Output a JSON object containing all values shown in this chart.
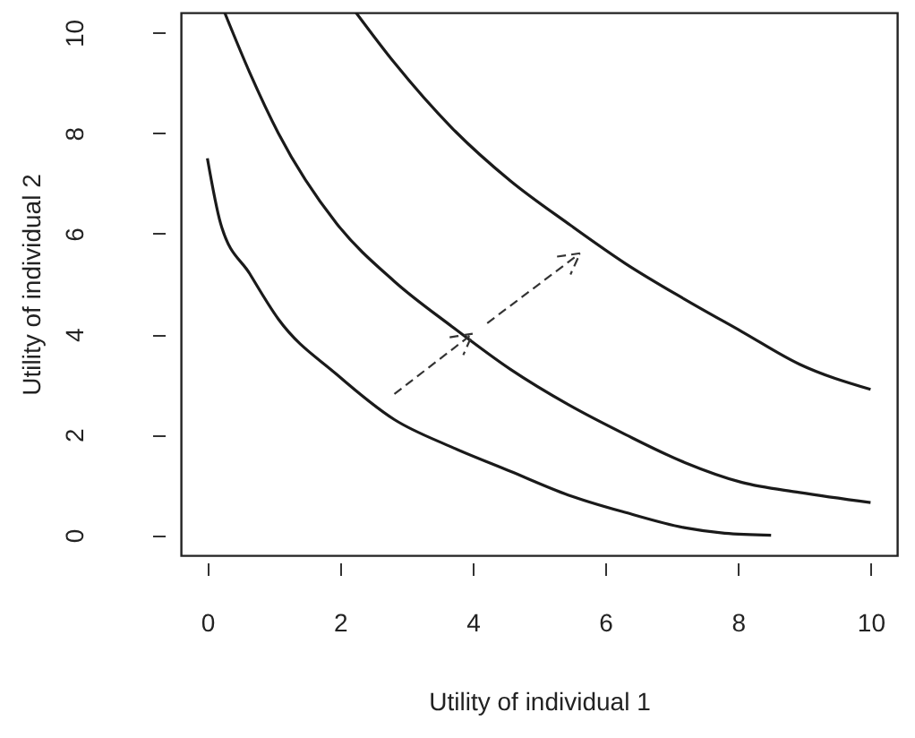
{
  "chart_data": {
    "type": "line",
    "xlabel": "Utility of individual 1",
    "ylabel": "Utility of individual 2",
    "xlim": [
      -0.4,
      10.4
    ],
    "ylim": [
      -0.4,
      10.4
    ],
    "xticks": [
      0,
      2,
      4,
      6,
      8,
      10
    ],
    "yticks": [
      0,
      2,
      4,
      6,
      8,
      10
    ],
    "marker": "none",
    "line_style": "solid",
    "series": [
      {
        "color": "#1a1a1a",
        "x": [
          0,
          0.2,
          0.64,
          1.07,
          1.95,
          2.82,
          3.69,
          4.57,
          5.44,
          6.31,
          7.19,
          7.8,
          8.5
        ],
        "values": [
          7.5,
          6.2,
          5.2,
          4.3,
          3.2,
          2.3,
          1.75,
          1.27,
          0.8,
          0.45,
          0.15,
          0.04,
          0
        ]
      },
      {
        "color": "#1a1a1a",
        "x": [
          0.26,
          0.64,
          1.07,
          1.95,
          2.82,
          3.69,
          4.57,
          5.44,
          6.31,
          7.19,
          8.06,
          8.93,
          10
        ],
        "values": [
          10.4,
          9.2,
          8,
          6.2,
          5.05,
          4.15,
          3.3,
          2.6,
          2,
          1.45,
          1.05,
          0.85,
          0.65
        ]
      },
      {
        "color": "#1a1a1a",
        "x": [
          2.24,
          2.82,
          3.69,
          4.57,
          5.44,
          6.31,
          7.19,
          8.06,
          8.93,
          10
        ],
        "values": [
          10.4,
          9.4,
          8.1,
          7.05,
          6.2,
          5.4,
          4.7,
          4.05,
          3.4,
          2.9
        ]
      }
    ]
  }
}
